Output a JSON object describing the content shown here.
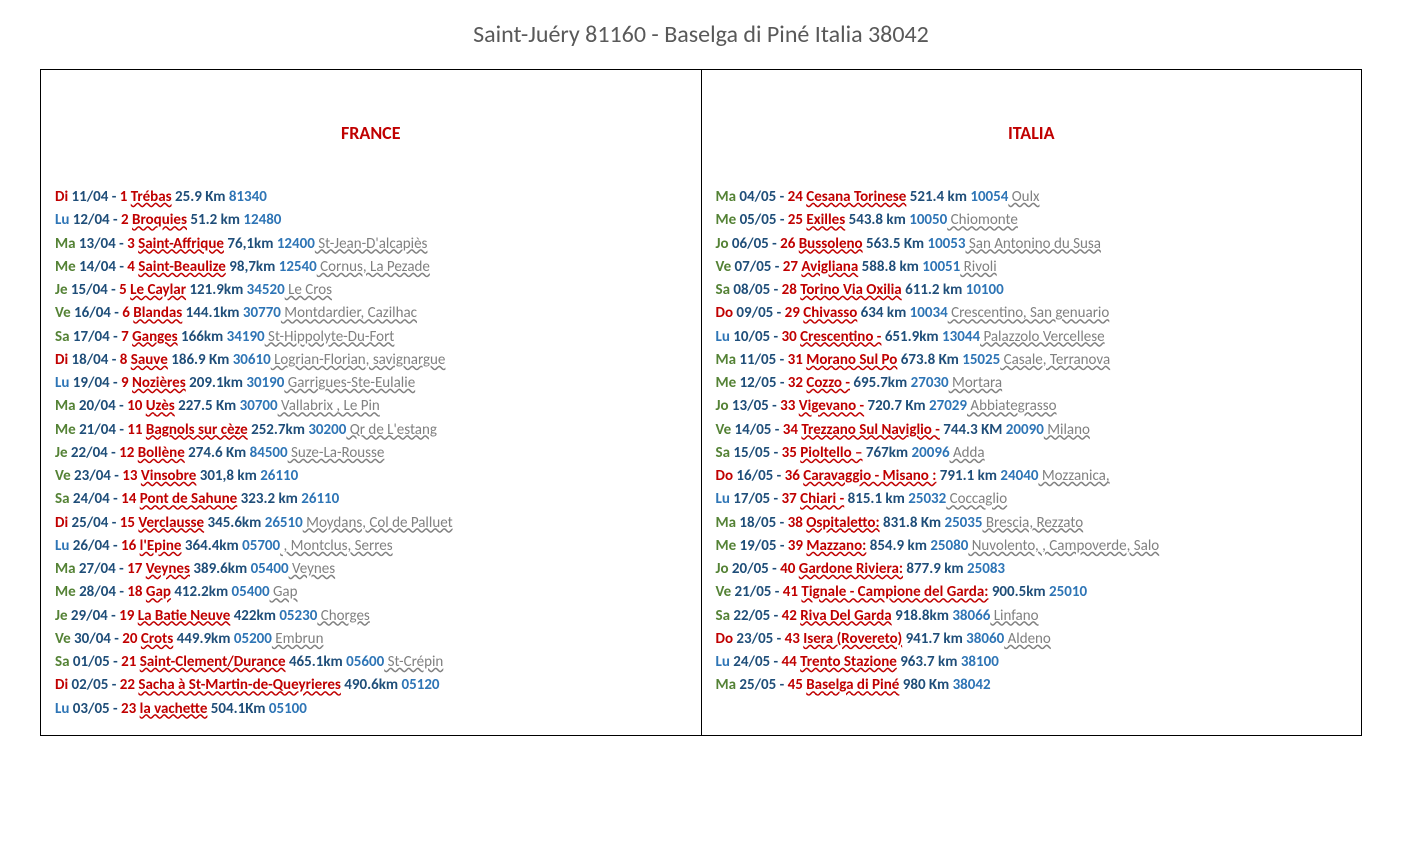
{
  "title": "Saint-Juéry 81160  - Baselga di Piné Italia 38042",
  "colors": {
    "title": "#595959",
    "date": "#1f4e79",
    "num_loc": "#c00000",
    "zip": "#2e75b6",
    "note": "#808080",
    "header_france": "#c00000",
    "header_italia": "#c00000",
    "day_green": "#548235",
    "day_blue": "#2e75b6",
    "day_red": "#c00000"
  },
  "left": {
    "header": "FRANCE",
    "header_color": "#c00000",
    "rows": [
      {
        "day": "Di",
        "dc": "#c00000",
        "date": "11/04",
        "num": "1",
        "loc": "Trébas",
        "dist": "25.9 Km",
        "zip": "81340",
        "note": ""
      },
      {
        "day": "Lu",
        "dc": "#2e75b6",
        "date": "12/04",
        "num": "2",
        "loc": "Broquies",
        "dist": "51.2 km",
        "zip": "12480",
        "note": ""
      },
      {
        "day": "Ma",
        "dc": "#548235",
        "date": "13/04",
        "num": "3",
        "loc": "Saint-Affrique",
        "dist": "76,1km",
        "zip": "12400",
        "note": "St-Jean-D'alcapiès"
      },
      {
        "day": "Me",
        "dc": "#548235",
        "date": "14/04",
        "num": "4",
        "loc": "Saint-Beaulize",
        "dist": "98,7km",
        "zip": "12540",
        "note": "Cornus, La Pezade"
      },
      {
        "day": "Je",
        "dc": "#548235",
        "date": "15/04",
        "num": "5",
        "loc": "Le Caylar",
        "dist": "121.9km",
        "zip": "34520",
        "note": "Le Cros"
      },
      {
        "day": "Ve",
        "dc": "#548235",
        "date": "16/04",
        "num": "6",
        "loc": "Blandas",
        "dist": "144.1km",
        "zip": "30770",
        "note": "Montdardier, Cazilhac"
      },
      {
        "day": "Sa",
        "dc": "#548235",
        "date": "17/04",
        "num": "7",
        "loc": "Ganges",
        "dist": "166km",
        "zip": "34190",
        "note": "St-Hippolyte-Du-Fort"
      },
      {
        "day": "Di",
        "dc": "#c00000",
        "date": "18/04",
        "num": "8",
        "loc": "Sauve",
        "dist": "186.9 Km",
        "zip": "30610",
        "note": "Logrian-Florian, savignargue"
      },
      {
        "day": "Lu",
        "dc": "#2e75b6",
        "date": "19/04",
        "num": "9",
        "loc": "Nozières",
        "dist": "209.1km",
        "zip": "30190",
        "note": "Garrigues-Ste-Eulalie"
      },
      {
        "day": "Ma",
        "dc": "#548235",
        "date": "20/04",
        "num": "10",
        "loc": "Uzès",
        "dist": "227.5 Km",
        "zip": "30700",
        "note": "Vallabrix , Le Pin"
      },
      {
        "day": "Me",
        "dc": "#548235",
        "date": "21/04",
        "num": "11",
        "loc": "Bagnols sur cèze",
        "dist": "252.7km",
        "zip": "30200",
        "note": "Qr de L'estang"
      },
      {
        "day": "Je",
        "dc": "#548235",
        "date": "22/04",
        "num": "12",
        "loc": "Bollène",
        "dist": "274.6 Km",
        "zip": "84500",
        "note": "Suze-La-Rousse"
      },
      {
        "day": "Ve",
        "dc": "#548235",
        "date": "23/04",
        "num": "13",
        "loc": "Vinsobre",
        "dist": "301,8 km",
        "zip": "26110",
        "note": ""
      },
      {
        "day": "Sa",
        "dc": "#548235",
        "date": "24/04",
        "num": "14",
        "loc": "Pont de Sahune",
        "dist": "323.2 km",
        "zip": "26110",
        "note": ""
      },
      {
        "day": "Di",
        "dc": "#c00000",
        "date": "25/04",
        "num": "15",
        "loc": "Verclausse",
        "dist": "345.6km",
        "zip": "26510",
        "note": "Moydans, Col de Palluet"
      },
      {
        "day": "Lu",
        "dc": "#2e75b6",
        "date": "26/04",
        "num": "16",
        "loc": "l'Epine",
        "dist": "364.4km",
        "zip": "05700",
        "note": ", Montclus, Serres"
      },
      {
        "day": "Ma",
        "dc": "#548235",
        "date": "27/04",
        "num": "17",
        "loc": "Veynes",
        "dist": "389.6km",
        "zip": "05400",
        "note": "Veynes"
      },
      {
        "day": "Me",
        "dc": "#548235",
        "date": "28/04",
        "num": "18",
        "loc": "Gap",
        "dist": "412.2km",
        "zip": "05400",
        "note": "Gap"
      },
      {
        "day": "Je",
        "dc": "#548235",
        "date": "29/04",
        "num": "19",
        "loc": "La Batie Neuve",
        "dist": "422km",
        "zip": "05230",
        "note": "Chorges"
      },
      {
        "day": "Ve",
        "dc": "#548235",
        "date": "30/04",
        "num": "20",
        "loc": "Crots",
        "dist": "449.9km",
        "zip": "05200",
        "note": "Embrun"
      },
      {
        "day": "Sa",
        "dc": "#548235",
        "date": "01/05",
        "num": "21",
        "loc": "Saint-Clement/Durance",
        "dist": "465.1km",
        "zip": "05600",
        "note": "St-Crépin"
      },
      {
        "day": "Di",
        "dc": "#c00000",
        "date": "02/05",
        "num": "22",
        "loc": "Sacha à St-Martin-de-Queyrieres",
        "dist": "490.6km",
        "zip": "05120",
        "note": ""
      },
      {
        "day": "Lu",
        "dc": "#2e75b6",
        "date": "03/05",
        "num": "23",
        "loc": "la vachette",
        "dist": "504.1Km",
        "zip": "05100",
        "note": ""
      }
    ]
  },
  "right": {
    "header": "ITALIA",
    "header_color": "#c00000",
    "rows": [
      {
        "day": "Ma",
        "dc": "#548235",
        "date": "04/05",
        "num": "24",
        "loc": "Cesana Torinese",
        "dist": "521.4 km",
        "zip": "10054",
        "note": "Oulx"
      },
      {
        "day": "Me",
        "dc": "#548235",
        "date": "05/05",
        "num": "25",
        "loc": "Exilles",
        "dist": "543.8 km",
        "zip": "10050",
        "note": "Chiomonte"
      },
      {
        "day": "Jo",
        "dc": "#548235",
        "date": "06/05",
        "num": "26",
        "loc": "Bussoleno",
        "dist": "563.5 Km",
        "zip": "10053",
        "note": "San Antonino du Susa"
      },
      {
        "day": "Ve",
        "dc": "#548235",
        "date": "07/05",
        "num": "27",
        "loc": "Avigliana",
        "dist": "588.8 km",
        "zip": "10051",
        "note": "Rivoli"
      },
      {
        "day": "Sa",
        "dc": "#548235",
        "date": "08/05",
        "num": "28",
        "loc": "Torino Via Oxilia",
        "dist": "611.2 km",
        "zip": "10100",
        "note": ""
      },
      {
        "day": "Do",
        "dc": "#c00000",
        "date": "09/05",
        "num": "29",
        "loc": "Chivasso",
        "dist": "634 km",
        "zip": "10034",
        "note": "Crescentino, San genuario"
      },
      {
        "day": "Lu",
        "dc": "#2e75b6",
        "date": "10/05",
        "num": "30",
        "loc": "Crescentino -",
        "dist": "651.9km",
        "zip": "13044",
        "note": "Palazzolo Vercellese"
      },
      {
        "day": "Ma",
        "dc": "#548235",
        "date": "11/05",
        "num": "31",
        "loc": "Morano Sul Po",
        "dist": "673.8 Km",
        "zip": "15025",
        "note": "Casale, Terranova"
      },
      {
        "day": "Me",
        "dc": "#548235",
        "date": "12/05",
        "num": "32",
        "loc": "Cozzo -",
        "dist": "695.7km",
        "zip": "27030",
        "note": "Mortara"
      },
      {
        "day": "Jo",
        "dc": "#548235",
        "date": "13/05",
        "num": "33",
        "loc": "Vigevano -",
        "dist": "720.7 Km",
        "zip": "27029",
        "note": "Abbiategrasso"
      },
      {
        "day": "Ve",
        "dc": "#548235",
        "date": "14/05",
        "num": "34",
        "loc": "Trezzano Sul Naviglio -",
        "dist": "744.3 KM",
        "zip": "20090",
        "note": "Milano"
      },
      {
        "day": "Sa",
        "dc": "#548235",
        "date": "15/05",
        "num": "35",
        "loc": "Pioltello –",
        "dist": "767km",
        "zip": "20096",
        "note": "Adda"
      },
      {
        "day": "Do",
        "dc": "#c00000",
        "date": "16/05",
        "num": "36",
        "loc": "Caravaggio - Misano :",
        "dist": "791.1 km",
        "zip": "24040",
        "note": "Mozzanica,"
      },
      {
        "day": "Lu",
        "dc": "#2e75b6",
        "date": "17/05",
        "num": "37",
        "loc": "Chiari -",
        "dist": "815.1 km",
        "zip": "25032",
        "note": "Coccaglio"
      },
      {
        "day": "Ma",
        "dc": "#548235",
        "date": "18/05",
        "num": "38",
        "loc": "Ospitaletto:",
        "dist": "831.8 Km",
        "zip": "25035",
        "note": "Brescia, Rezzato"
      },
      {
        "day": "Me",
        "dc": "#548235",
        "date": "19/05",
        "num": "39",
        "loc": "Mazzano:",
        "dist": "854.9 km",
        "zip": "25080",
        "note": "Nuvolento, , Campoverde, Salo"
      },
      {
        "day": "Jo",
        "dc": "#548235",
        "date": "20/05",
        "num": "40",
        "loc": "Gardone Riviera:",
        "dist": "877.9 km",
        "zip": "25083",
        "note": ""
      },
      {
        "day": "Ve",
        "dc": "#548235",
        "date": "21/05",
        "num": "41",
        "loc": "Tignale - Campione del Garda:",
        "dist": "900.5km",
        "zip": "25010",
        "note": ""
      },
      {
        "day": "Sa",
        "dc": "#548235",
        "date": "22/05",
        "num": "42",
        "loc": "Riva Del Garda",
        "dist": "918.8km",
        "zip": "38066",
        "note": "Linfano"
      },
      {
        "day": "Do",
        "dc": "#c00000",
        "date": "23/05",
        "num": "43",
        "loc": "Isera (Rovereto)",
        "dist": "941.7 km",
        "zip": "38060",
        "note": "Aldeno"
      },
      {
        "day": "Lu",
        "dc": "#2e75b6",
        "date": "24/05",
        "num": "44",
        "loc": "Trento Stazione",
        "dist": "963.7 km",
        "zip": "38100",
        "note": ""
      },
      {
        "day": "Ma",
        "dc": "#548235",
        "date": "25/05",
        "num": "45",
        "loc": "Baselga di Piné",
        "dist": "980 Km",
        "zip": "38042",
        "note": ""
      }
    ]
  }
}
